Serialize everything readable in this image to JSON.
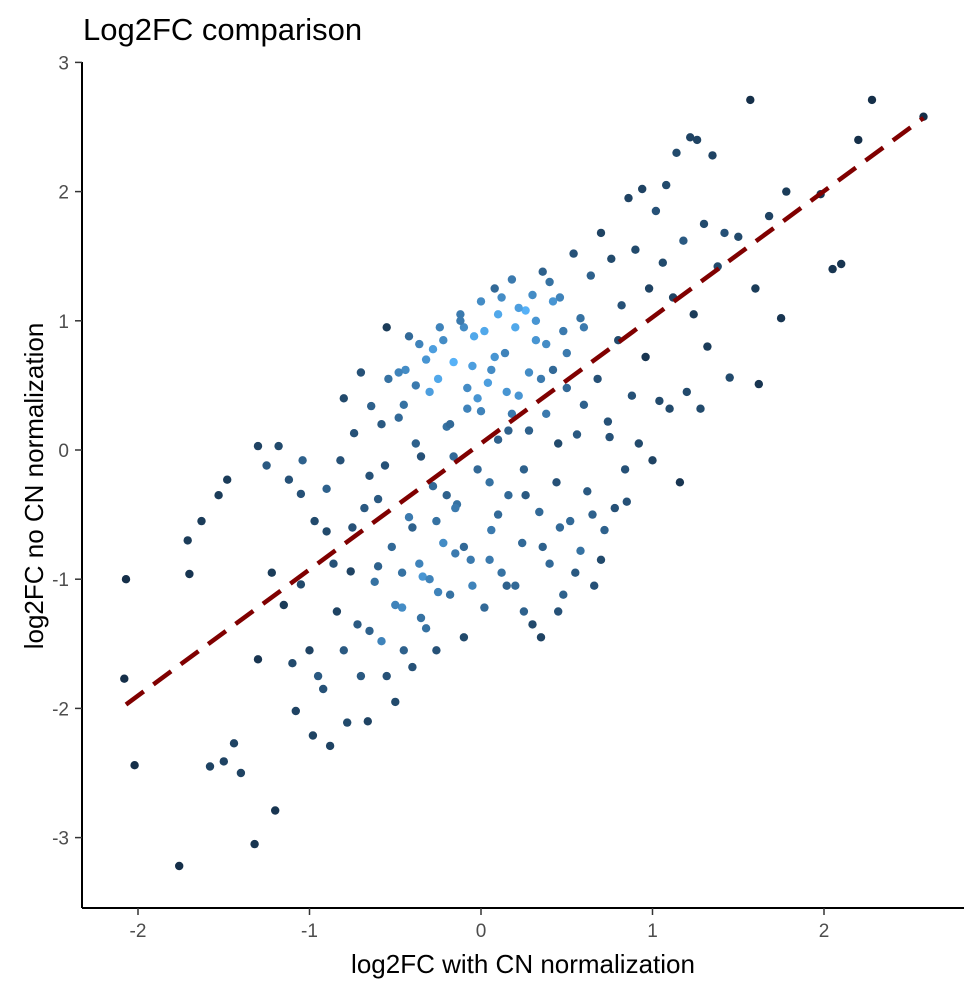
{
  "chart_data": {
    "type": "scatter",
    "title": "Log2FC comparison",
    "xlabel": "log2FC with CN normalization",
    "ylabel": "log2FC no CN normalization",
    "xlim": [
      -2.3,
      2.85
    ],
    "ylim": [
      -3.5,
      3.0
    ],
    "x_ticks": [
      -2,
      -1,
      0,
      1,
      2
    ],
    "y_ticks": [
      -3,
      -2,
      -1,
      0,
      1,
      2,
      3
    ],
    "grid": false,
    "legend": "none",
    "point_color_scale": {
      "low_density": "#132b43",
      "high_density": "#56b1f7"
    },
    "trend_line": {
      "style": "dashed",
      "color": "#800000",
      "x": [
        -2.07,
        2.58
      ],
      "y": [
        -1.97,
        2.57
      ]
    },
    "points": [
      [
        -2.07,
        -1.0
      ],
      [
        -2.08,
        -1.77
      ],
      [
        -2.02,
        -2.44
      ],
      [
        -1.76,
        -3.22
      ],
      [
        -1.71,
        -0.7
      ],
      [
        -1.7,
        -0.96
      ],
      [
        -1.63,
        -0.55
      ],
      [
        -1.58,
        -2.45
      ],
      [
        -1.5,
        -2.41
      ],
      [
        -1.53,
        -0.35
      ],
      [
        -1.48,
        -0.23
      ],
      [
        -1.44,
        -2.27
      ],
      [
        -1.4,
        -2.5
      ],
      [
        -1.32,
        -3.05
      ],
      [
        -1.3,
        0.03
      ],
      [
        -1.3,
        -1.62
      ],
      [
        -1.25,
        -0.12
      ],
      [
        -1.22,
        -0.95
      ],
      [
        -1.2,
        -2.79
      ],
      [
        -1.18,
        0.03
      ],
      [
        -1.15,
        -1.2
      ],
      [
        -1.12,
        -0.23
      ],
      [
        -1.1,
        -1.65
      ],
      [
        -1.08,
        -2.02
      ],
      [
        -1.05,
        -0.34
      ],
      [
        -1.05,
        -1.04
      ],
      [
        -1.04,
        -0.08
      ],
      [
        -1.0,
        -1.55
      ],
      [
        -0.98,
        -2.21
      ],
      [
        -0.97,
        -0.55
      ],
      [
        -0.95,
        -1.75
      ],
      [
        -0.92,
        -1.85
      ],
      [
        -0.9,
        -0.63
      ],
      [
        -0.88,
        -2.29
      ],
      [
        -0.86,
        -0.88
      ],
      [
        -0.84,
        -1.25
      ],
      [
        -0.82,
        -0.08
      ],
      [
        -0.8,
        -1.55
      ],
      [
        -0.78,
        -2.11
      ],
      [
        -0.76,
        -0.94
      ],
      [
        -0.74,
        0.13
      ],
      [
        -0.72,
        -1.35
      ],
      [
        -0.7,
        -1.75
      ],
      [
        -0.68,
        -0.45
      ],
      [
        -0.66,
        -2.1
      ],
      [
        -0.64,
        0.34
      ],
      [
        -0.62,
        -1.02
      ],
      [
        -0.6,
        -0.38
      ],
      [
        -0.58,
        -1.48
      ],
      [
        -0.56,
        -0.12
      ],
      [
        -0.54,
        0.55
      ],
      [
        -0.52,
        -0.75
      ],
      [
        -0.5,
        -1.95
      ],
      [
        -0.48,
        0.25
      ],
      [
        -0.46,
        -1.22
      ],
      [
        -0.44,
        0.62
      ],
      [
        -0.42,
        -0.52
      ],
      [
        -0.4,
        -1.68
      ],
      [
        -0.38,
        0.05
      ],
      [
        -0.36,
        0.82
      ],
      [
        -0.34,
        -0.98
      ],
      [
        -0.32,
        -1.38
      ],
      [
        -0.3,
        0.45
      ],
      [
        -0.28,
        -0.28
      ],
      [
        -0.26,
        -1.55
      ],
      [
        -0.24,
        0.95
      ],
      [
        -0.22,
        -0.72
      ],
      [
        -0.2,
        0.18
      ],
      [
        -0.18,
        -1.12
      ],
      [
        -0.16,
        0.68
      ],
      [
        -0.14,
        -0.42
      ],
      [
        -0.12,
        1.05
      ],
      [
        -0.1,
        -1.45
      ],
      [
        -0.08,
        0.32
      ],
      [
        -0.06,
        -0.85
      ],
      [
        -0.04,
        0.88
      ],
      [
        -0.02,
        -0.15
      ],
      [
        0.0,
        1.15
      ],
      [
        0.02,
        -1.22
      ],
      [
        0.04,
        0.52
      ],
      [
        0.06,
        -0.62
      ],
      [
        0.08,
        1.25
      ],
      [
        0.1,
        0.08
      ],
      [
        0.12,
        -0.95
      ],
      [
        0.14,
        0.75
      ],
      [
        0.16,
        -0.35
      ],
      [
        0.18,
        1.32
      ],
      [
        0.2,
        -1.05
      ],
      [
        0.22,
        0.42
      ],
      [
        0.24,
        -0.72
      ],
      [
        0.26,
        1.08
      ],
      [
        0.28,
        0.15
      ],
      [
        0.3,
        -1.35
      ],
      [
        0.32,
        0.85
      ],
      [
        0.34,
        -0.48
      ],
      [
        0.36,
        1.38
      ],
      [
        0.38,
        0.28
      ],
      [
        0.4,
        -0.88
      ],
      [
        0.42,
        0.62
      ],
      [
        0.44,
        -0.25
      ],
      [
        0.46,
        1.18
      ],
      [
        0.48,
        -1.12
      ],
      [
        0.5,
        0.48
      ],
      [
        0.52,
        -0.55
      ],
      [
        0.54,
        1.52
      ],
      [
        0.56,
        0.12
      ],
      [
        0.58,
        -0.78
      ],
      [
        0.6,
        0.95
      ],
      [
        0.62,
        -0.32
      ],
      [
        0.64,
        1.35
      ],
      [
        0.66,
        -1.05
      ],
      [
        0.68,
        0.55
      ],
      [
        0.7,
        1.68
      ],
      [
        0.72,
        -0.62
      ],
      [
        0.74,
        0.22
      ],
      [
        0.76,
        1.48
      ],
      [
        0.78,
        -0.45
      ],
      [
        0.8,
        0.85
      ],
      [
        0.82,
        1.12
      ],
      [
        0.84,
        -0.15
      ],
      [
        0.86,
        1.95
      ],
      [
        0.88,
        0.42
      ],
      [
        0.9,
        1.55
      ],
      [
        0.92,
        0.05
      ],
      [
        0.94,
        2.02
      ],
      [
        0.96,
        0.72
      ],
      [
        0.98,
        1.25
      ],
      [
        1.0,
        -0.08
      ],
      [
        1.02,
        1.85
      ],
      [
        1.04,
        0.38
      ],
      [
        1.06,
        1.45
      ],
      [
        1.08,
        2.05
      ],
      [
        1.1,
        0.32
      ],
      [
        1.12,
        1.18
      ],
      [
        1.14,
        2.3
      ],
      [
        1.16,
        -0.25
      ],
      [
        1.18,
        1.62
      ],
      [
        1.2,
        0.45
      ],
      [
        1.22,
        2.42
      ],
      [
        1.24,
        1.05
      ],
      [
        1.26,
        2.4
      ],
      [
        1.28,
        0.32
      ],
      [
        1.3,
        1.75
      ],
      [
        1.32,
        0.8
      ],
      [
        1.35,
        2.28
      ],
      [
        1.38,
        1.42
      ],
      [
        1.42,
        1.68
      ],
      [
        1.45,
        0.56
      ],
      [
        1.5,
        1.65
      ],
      [
        1.57,
        2.71
      ],
      [
        1.6,
        1.25
      ],
      [
        1.62,
        0.51
      ],
      [
        1.68,
        1.81
      ],
      [
        1.75,
        1.02
      ],
      [
        1.78,
        2.0
      ],
      [
        1.98,
        1.98
      ],
      [
        2.05,
        1.4
      ],
      [
        2.1,
        1.44
      ],
      [
        2.2,
        2.4
      ],
      [
        2.28,
        2.71
      ],
      [
        2.58,
        2.58
      ],
      [
        -0.55,
        0.95
      ],
      [
        -0.45,
        0.35
      ],
      [
        -0.35,
        -0.05
      ],
      [
        -0.25,
        0.55
      ],
      [
        -0.15,
        -0.45
      ],
      [
        -0.05,
        0.65
      ],
      [
        0.05,
        -0.25
      ],
      [
        0.15,
        0.45
      ],
      [
        0.25,
        -0.15
      ],
      [
        0.35,
        0.55
      ],
      [
        0.45,
        0.05
      ],
      [
        -0.6,
        -0.9
      ],
      [
        -0.5,
        -1.2
      ],
      [
        -0.4,
        -0.6
      ],
      [
        -0.3,
        -1.0
      ],
      [
        -0.2,
        -0.35
      ],
      [
        -0.1,
        -0.75
      ],
      [
        0.1,
        -0.5
      ],
      [
        0.2,
        0.95
      ],
      [
        0.3,
        1.2
      ],
      [
        0.1,
        1.05
      ],
      [
        -0.1,
        0.95
      ],
      [
        0.4,
        1.3
      ],
      [
        0.5,
        0.75
      ],
      [
        0.6,
        0.35
      ],
      [
        -0.7,
        0.6
      ],
      [
        -0.8,
        0.4
      ],
      [
        -0.65,
        -0.2
      ],
      [
        -0.9,
        -0.3
      ],
      [
        -0.75,
        -0.6
      ],
      [
        0.65,
        -0.5
      ],
      [
        0.75,
        0.1
      ],
      [
        0.85,
        -0.4
      ],
      [
        0.7,
        -0.85
      ],
      [
        0.55,
        -0.95
      ],
      [
        0.45,
        -1.25
      ],
      [
        0.35,
        -1.45
      ],
      [
        0.25,
        -1.25
      ],
      [
        0.15,
        -1.05
      ],
      [
        0.05,
        -0.85
      ],
      [
        -0.05,
        -1.05
      ],
      [
        -0.15,
        -0.8
      ],
      [
        -0.25,
        -1.1
      ],
      [
        -0.35,
        -1.3
      ],
      [
        -0.45,
        -1.55
      ],
      [
        -0.55,
        -1.75
      ],
      [
        -0.65,
        -1.4
      ],
      [
        0.0,
        0.3
      ],
      [
        0.08,
        0.72
      ],
      [
        -0.08,
        0.48
      ],
      [
        0.18,
        0.28
      ],
      [
        -0.18,
        0.2
      ],
      [
        0.28,
        0.6
      ],
      [
        -0.28,
        0.78
      ],
      [
        0.38,
        0.82
      ],
      [
        -0.38,
        0.5
      ],
      [
        0.48,
        0.92
      ],
      [
        -0.48,
        0.6
      ],
      [
        0.58,
        1.02
      ],
      [
        -0.58,
        0.2
      ],
      [
        0.12,
        1.18
      ],
      [
        -0.12,
        1.0
      ],
      [
        0.22,
        1.1
      ],
      [
        -0.22,
        0.85
      ],
      [
        0.32,
        1.0
      ],
      [
        -0.32,
        0.7
      ],
      [
        0.42,
        1.15
      ],
      [
        -0.42,
        0.88
      ],
      [
        0.02,
        0.92
      ],
      [
        0.06,
        0.62
      ],
      [
        -0.02,
        0.4
      ],
      [
        0.16,
        0.15
      ],
      [
        -0.16,
        -0.05
      ],
      [
        0.26,
        -0.35
      ],
      [
        -0.26,
        -0.55
      ],
      [
        0.36,
        -0.75
      ],
      [
        -0.36,
        -0.88
      ],
      [
        0.46,
        -0.6
      ],
      [
        -0.46,
        -0.95
      ]
    ]
  }
}
